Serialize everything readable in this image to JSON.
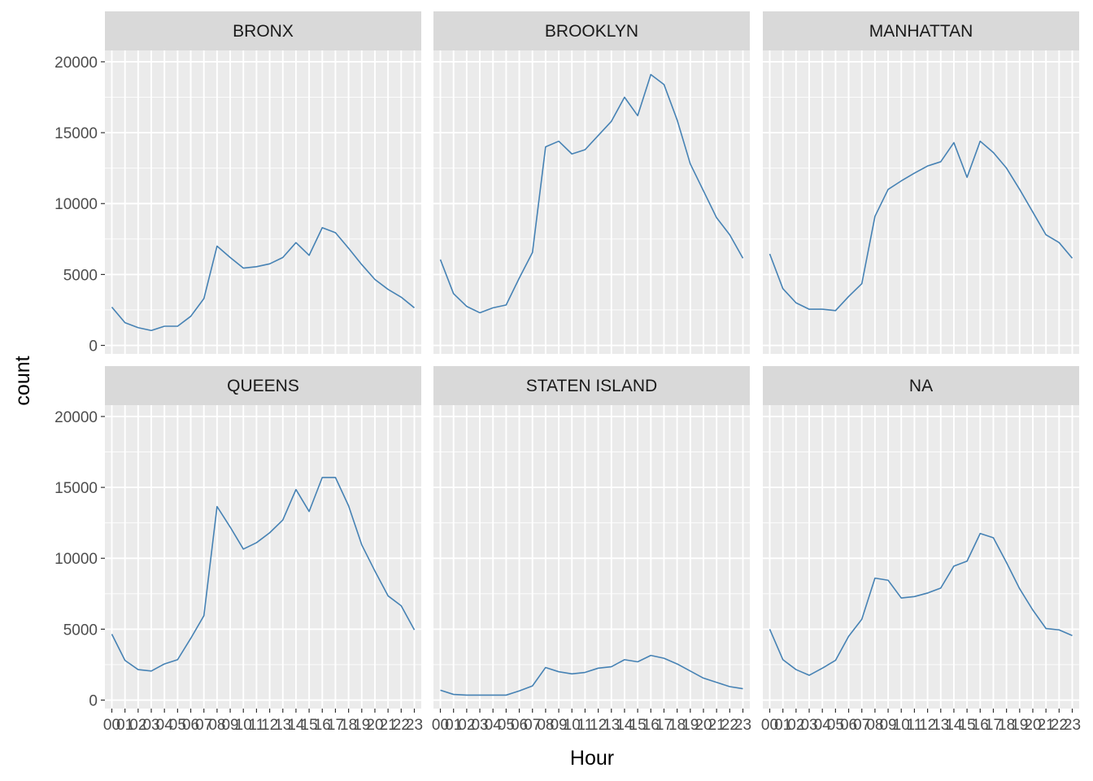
{
  "chart_data": {
    "type": "line",
    "facet": "wrap",
    "facet_layout": {
      "rows": 2,
      "cols": 3
    },
    "xlabel": "Hour",
    "ylabel": "count",
    "x": [
      "00",
      "01",
      "02",
      "03",
      "04",
      "05",
      "06",
      "07",
      "08",
      "09",
      "10",
      "11",
      "12",
      "13",
      "14",
      "15",
      "16",
      "17",
      "18",
      "19",
      "20",
      "21",
      "22",
      "23"
    ],
    "ylim": [
      -600,
      20800
    ],
    "y_ticks": [
      0,
      5000,
      10000,
      15000,
      20000
    ],
    "y_tick_labels": [
      "0",
      "5000",
      "10000",
      "15000",
      "20000"
    ],
    "grid": true,
    "line_color": "#4682b4",
    "panel_background": "#ebebeb",
    "strip_background": "#d9d9d9",
    "panels": [
      {
        "name": "BRONX",
        "values": [
          2700,
          1600,
          1250,
          1050,
          1350,
          1350,
          2050,
          3300,
          7000,
          6200,
          5450,
          5550,
          5750,
          6200,
          7250,
          6350,
          8300,
          7950,
          6850,
          5700,
          4650,
          3950,
          3400,
          2650
        ]
      },
      {
        "name": "BROOKLYN",
        "values": [
          6050,
          3650,
          2750,
          2300,
          2650,
          2850,
          4750,
          6550,
          14000,
          14400,
          13500,
          13800,
          14800,
          15800,
          17500,
          16200,
          19100,
          18400,
          15900,
          12800,
          10900,
          9000,
          7800,
          6150
        ]
      },
      {
        "name": "MANHATTAN",
        "values": [
          6450,
          4000,
          3000,
          2550,
          2550,
          2450,
          3450,
          4350,
          9100,
          11000,
          11600,
          12150,
          12650,
          12950,
          14300,
          11850,
          14400,
          13600,
          12500,
          11000,
          9400,
          7800,
          7250,
          6150
        ]
      },
      {
        "name": "QUEENS",
        "values": [
          4650,
          2800,
          2150,
          2050,
          2550,
          2850,
          4350,
          5950,
          13650,
          12200,
          10650,
          11100,
          11800,
          12700,
          14850,
          13300,
          15700,
          15700,
          13700,
          10950,
          9100,
          7350,
          6650,
          4950
        ]
      },
      {
        "name": "STATEN ISLAND",
        "values": [
          700,
          400,
          350,
          350,
          350,
          350,
          650,
          1000,
          2300,
          2000,
          1850,
          1950,
          2250,
          2350,
          2850,
          2700,
          3150,
          2950,
          2550,
          2050,
          1550,
          1250,
          950,
          800
        ]
      },
      {
        "name": "NA",
        "values": [
          5000,
          2850,
          2150,
          1750,
          2250,
          2800,
          4500,
          5700,
          8600,
          8450,
          7200,
          7300,
          7550,
          7900,
          9450,
          9800,
          11750,
          11450,
          9700,
          7850,
          6350,
          5050,
          4950,
          4550
        ]
      }
    ]
  }
}
